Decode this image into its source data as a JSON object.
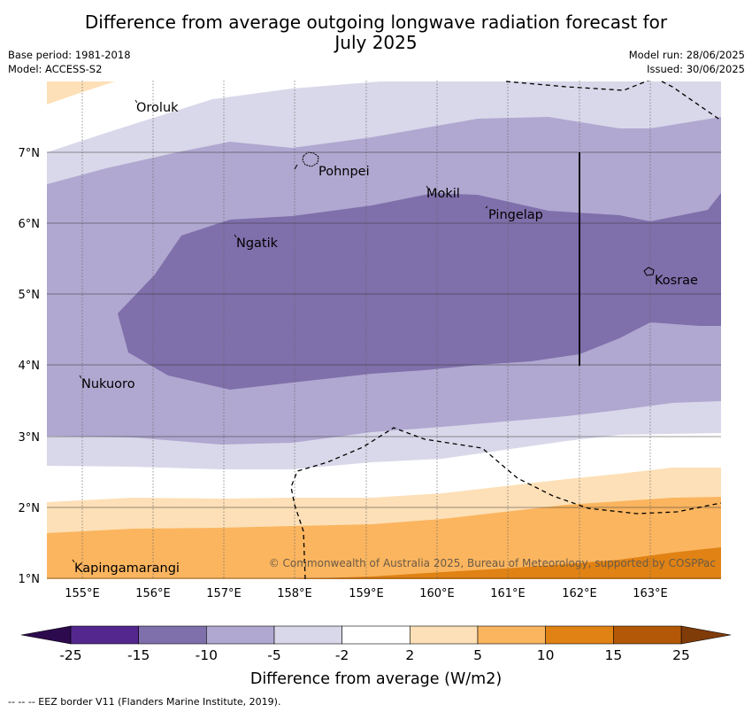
{
  "title": {
    "line1": "Difference from average outgoing longwave radiation forecast for",
    "line2": "July 2025"
  },
  "meta": {
    "base_period": "Base period: 1981-2018",
    "model": "Model: ACCESS-S2",
    "model_run": "Model run: 28/06/2025",
    "issued": "Issued: 30/06/2025"
  },
  "places": {
    "oroluk": "Oroluk",
    "pohnpei": "Pohnpei",
    "mokil": "Mokil",
    "pingelap": "Pingelap",
    "ngatik": "Ngatik",
    "kosrae": "Kosrae",
    "nukuoro": "Nukuoro",
    "kapingamarangi": "Kapingamarangi"
  },
  "axes": {
    "lat_labels": [
      "7°N",
      "6°N",
      "5°N",
      "4°N",
      "3°N",
      "2°N",
      "1°N"
    ],
    "lon_labels": [
      "155°E",
      "156°E",
      "157°E",
      "158°E",
      "159°E",
      "160°E",
      "161°E",
      "162°E",
      "163°E"
    ]
  },
  "copyright": "© Commonwealth of Australia 2025, Bureau of Meteorology, supported by COSPPac",
  "colorbar": {
    "title": "Difference from average (W/m2)",
    "ticks": [
      "-25",
      "-15",
      "-10",
      "-5",
      "-2",
      "2",
      "5",
      "10",
      "15",
      "25"
    ],
    "colors": [
      "#54278f",
      "#7f6fab",
      "#b0a8d0",
      "#d9d8ea",
      "#ffffff",
      "#fde0b7",
      "#fbb55f",
      "#e08214",
      "#b35806"
    ],
    "under_color": "#2d0a4e",
    "over_color": "#7f3b08"
  },
  "footnote": "--  --  -- EEZ border V11 (Flanders Marine Institute, 2019)."
}
